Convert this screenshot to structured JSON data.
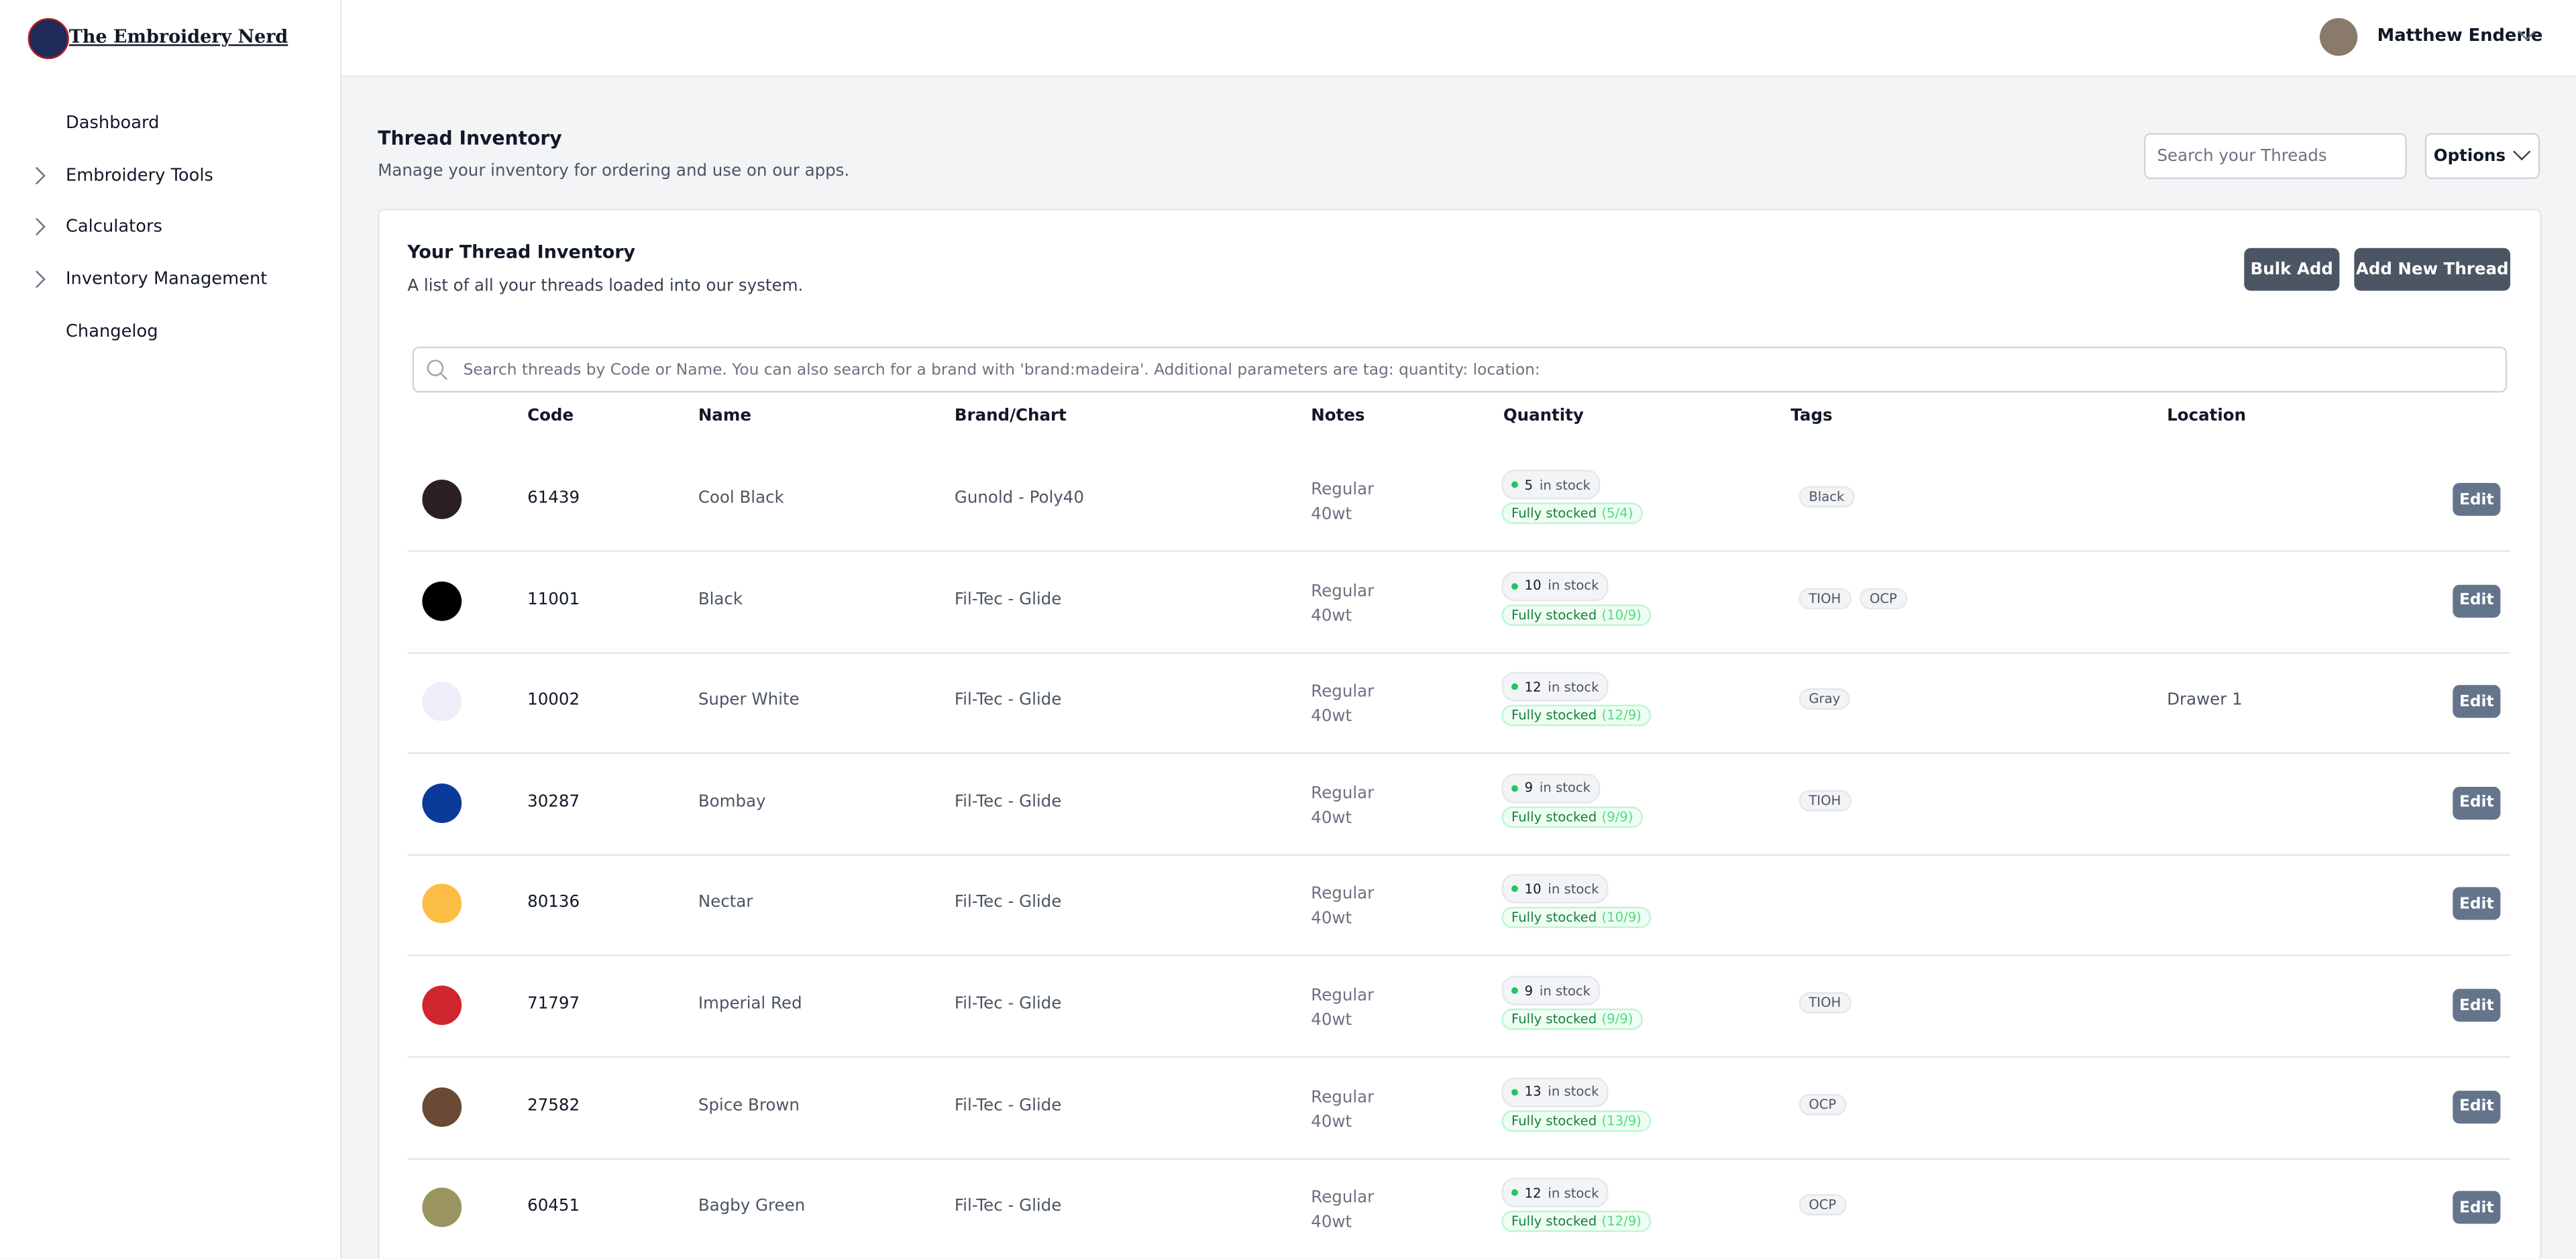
{
  "app": {
    "logo": "The Embroidery Nerd",
    "nav": [
      {
        "label": "Dashboard"
      },
      {
        "label": "Embroidery Tools",
        "expandable": true
      },
      {
        "label": "Calculators",
        "expandable": true
      },
      {
        "label": "Inventory Management",
        "expandable": true
      },
      {
        "label": "Changelog"
      }
    ],
    "user": "Matthew Enderle"
  },
  "header": {
    "title": "Thread Inventory",
    "subtitle": "Manage your inventory for ordering and use on our apps.",
    "search_placeholder": "Search your Threads",
    "options": "Options"
  },
  "card": {
    "title": "Your Thread Inventory",
    "subtitle": "A list of all your threads loaded into our system.",
    "bulk_add": "Bulk Add",
    "add_new": "Add New Thread",
    "search_placeholder": "Search threads by Code or Name. You can also search for a brand with 'brand:madeira'. Additional parameters are tag: quantity: location:"
  },
  "table": {
    "columns": [
      "Code",
      "Name",
      "Brand/Chart",
      "Notes",
      "Quantity",
      "Tags",
      "Location"
    ],
    "in_stock": "in stock",
    "fully_stocked": "Fully stocked",
    "edit": "Edit",
    "rows": [
      {
        "color": "#2b1f22",
        "code": "61439",
        "name": "Cool Black",
        "brand": "Gunold - Poly40",
        "notes": "Regular 40wt",
        "quantity": 5,
        "ratio": "(5/4)",
        "tags": [
          "Black"
        ]
      },
      {
        "color": "#000000",
        "code": "11001",
        "name": "Black",
        "brand": "Fil-Tec - Glide",
        "notes": "Regular 40wt",
        "quantity": 10,
        "ratio": "(10/9)",
        "tags": [
          "TIOH",
          "OCP"
        ]
      },
      {
        "color": "#eeeef8",
        "code": "10002",
        "name": "Super White",
        "brand": "Fil-Tec - Glide",
        "notes": "Regular 40wt",
        "quantity": 12,
        "ratio": "(12/9)",
        "tags": [
          "Gray"
        ],
        "location": "Drawer 1"
      },
      {
        "color": "#0a3a9a",
        "code": "30287",
        "name": "Bombay",
        "brand": "Fil-Tec - Glide",
        "notes": "Regular 40wt",
        "quantity": 9,
        "ratio": "(9/9)",
        "tags": [
          "TIOH"
        ]
      },
      {
        "color": "#fbbd45",
        "code": "80136",
        "name": "Nectar",
        "brand": "Fil-Tec - Glide",
        "notes": "Regular 40wt",
        "quantity": 10,
        "ratio": "(10/9)",
        "tags": []
      },
      {
        "color": "#d0262e",
        "code": "71797",
        "name": "Imperial Red",
        "brand": "Fil-Tec - Glide",
        "notes": "Regular 40wt",
        "quantity": 9,
        "ratio": "(9/9)",
        "tags": [
          "TIOH"
        ]
      },
      {
        "color": "#6a4a35",
        "code": "27582",
        "name": "Spice Brown",
        "brand": "Fil-Tec - Glide",
        "notes": "Regular 40wt",
        "quantity": 13,
        "ratio": "(13/9)",
        "tags": [
          "OCP"
        ]
      },
      {
        "color": "#9a9460",
        "code": "60451",
        "name": "Bagby Green",
        "brand": "Fil-Tec - Glide",
        "notes": "Regular 40wt",
        "quantity": 12,
        "ratio": "(12/9)",
        "tags": [
          "OCP"
        ]
      }
    ]
  }
}
